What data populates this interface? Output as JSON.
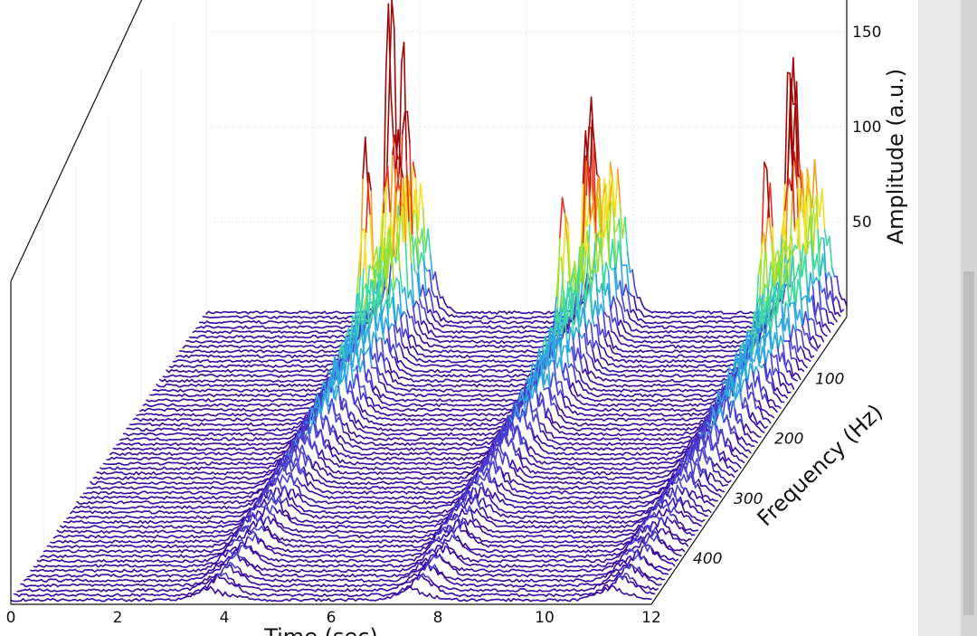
{
  "chart_data": {
    "type": "waterfall-3d",
    "title": "",
    "xlabel": "Time (sec)",
    "ylabel": "Frequency (Hz)",
    "zlabel": "Amplitude (a.u.)",
    "xlim": [
      0,
      12
    ],
    "ylim": [
      0,
      480
    ],
    "zlim": [
      0,
      180
    ],
    "x_ticks": [
      "0",
      "2",
      "4",
      "6",
      "8",
      "10",
      "12"
    ],
    "y_ticks": [
      "100",
      "200",
      "300",
      "400"
    ],
    "z_ticks": [
      "50",
      "100",
      "150"
    ],
    "grid": true,
    "colormap": [
      "#3a0ca3",
      "#4a3fd0",
      "#2fa8e0",
      "#3fd8a0",
      "#9be030",
      "#f0e020",
      "#f0a020",
      "#e03020",
      "#a00808"
    ],
    "series": [
      {
        "name": "",
        "peaks": [
          {
            "t": 3.6,
            "f": 20,
            "amp": 145
          },
          {
            "t": 4.0,
            "f": 40,
            "amp": 110
          },
          {
            "t": 3.6,
            "f": 80,
            "amp": 90
          }
        ]
      },
      {
        "name": "",
        "peaks": [
          {
            "t": 7.3,
            "f": 20,
            "amp": 85
          },
          {
            "t": 7.5,
            "f": 40,
            "amp": 80
          },
          {
            "t": 7.3,
            "f": 80,
            "amp": 70
          }
        ]
      },
      {
        "name": "",
        "peaks": [
          {
            "t": 11.1,
            "f": 20,
            "amp": 110
          },
          {
            "t": 11.3,
            "f": 40,
            "amp": 95
          },
          {
            "t": 11.1,
            "f": 80,
            "amp": 80
          }
        ]
      }
    ],
    "bursts": [
      {
        "t_start": 3.4,
        "t_end": 4.3
      },
      {
        "t_start": 7.2,
        "t_end": 8.0
      },
      {
        "t_start": 10.9,
        "t_end": 11.8
      }
    ]
  }
}
